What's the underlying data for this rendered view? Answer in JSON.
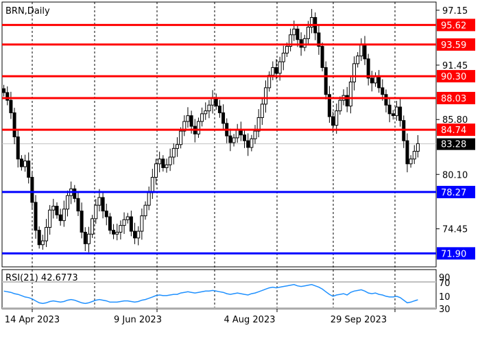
{
  "chart_data": [
    {
      "type": "candlestick",
      "title": "BRN,Daily",
      "ylim": [
        70.5,
        98.0
      ],
      "y_ticks": [
        "97.15",
        "91.45",
        "85.80",
        "80.10",
        "74.45"
      ],
      "x_ticks": [
        "14 Apr 2023",
        "9 Jun 2023",
        "4 Aug 2023",
        "29 Sep 2023"
      ],
      "current_price": "83.28",
      "resistance_levels": [
        "95.62",
        "93.59",
        "90.30",
        "88.03",
        "84.74"
      ],
      "support_levels": [
        "78.27",
        "71.90"
      ],
      "colors": {
        "resistance": "#ff0000",
        "support": "#0000ff",
        "candle": "#000000"
      },
      "closes": [
        88.6,
        87.8,
        86.5,
        84.0,
        81.7,
        80.9,
        81.5,
        79.8,
        77.2,
        74.3,
        72.8,
        73.2,
        74.6,
        76.4,
        76.8,
        75.9,
        75.3,
        76.5,
        77.9,
        78.6,
        77.6,
        76.3,
        74.1,
        72.9,
        73.9,
        75.5,
        76.9,
        77.7,
        76.3,
        75.7,
        74.3,
        73.9,
        74.1,
        74.8,
        75.4,
        75.7,
        74.2,
        73.5,
        74.2,
        75.8,
        76.9,
        78.2,
        79.8,
        81.2,
        81.7,
        80.8,
        81.1,
        81.9,
        82.8,
        83.2,
        84.6,
        85.6,
        86.2,
        85.1,
        84.3,
        85.6,
        86.4,
        86.7,
        87.3,
        88.1,
        87.2,
        86.5,
        85.4,
        84.1,
        83.4,
        83.9,
        84.7,
        84.2,
        83.6,
        82.9,
        83.8,
        84.6,
        86.0,
        87.4,
        89.1,
        90.4,
        91.2,
        90.6,
        91.8,
        92.7,
        93.4,
        94.6,
        95.2,
        94.1,
        93.3,
        94.2,
        95.4,
        96.4,
        94.8,
        93.4,
        91.2,
        88.4,
        86.1,
        85.2,
        86.7,
        87.8,
        88.3,
        87.2,
        89.7,
        91.6,
        92.4,
        93.6,
        92.1,
        90.1,
        89.6,
        90.3,
        89.1,
        88.4,
        87.3,
        86.4,
        86.2,
        87.1,
        85.7,
        83.6,
        81.2,
        81.7,
        82.5,
        83.3
      ],
      "ohlc_note": "",
      "colors_rsi": "#1e90ff"
    },
    {
      "type": "line",
      "title": "RSI(21) 42.6773",
      "ylim": [
        0,
        100
      ],
      "y_ticks": [
        "90",
        "70",
        "30",
        "10"
      ],
      "levels": [
        70,
        30
      ],
      "values": [
        56,
        55,
        54,
        52,
        51,
        49,
        47,
        46,
        44,
        41,
        38,
        37,
        38,
        40,
        41,
        40,
        39,
        40,
        42,
        43,
        42,
        40,
        38,
        37,
        38,
        40,
        42,
        43,
        42,
        41,
        39,
        39,
        39,
        40,
        41,
        41,
        40,
        39,
        40,
        42,
        43,
        45,
        47,
        49,
        50,
        49,
        49,
        50,
        51,
        51,
        53,
        54,
        55,
        54,
        53,
        54,
        55,
        56,
        56,
        57,
        56,
        55,
        54,
        52,
        51,
        52,
        53,
        52,
        51,
        50,
        52,
        53,
        55,
        57,
        59,
        61,
        62,
        61,
        62,
        63,
        64,
        65,
        66,
        64,
        63,
        64,
        65,
        66,
        64,
        62,
        59,
        55,
        51,
        48,
        50,
        51,
        52,
        50,
        54,
        56,
        57,
        58,
        56,
        53,
        52,
        53,
        51,
        50,
        48,
        47,
        47,
        48,
        46,
        42,
        38,
        39,
        41,
        42.68
      ]
    }
  ]
}
